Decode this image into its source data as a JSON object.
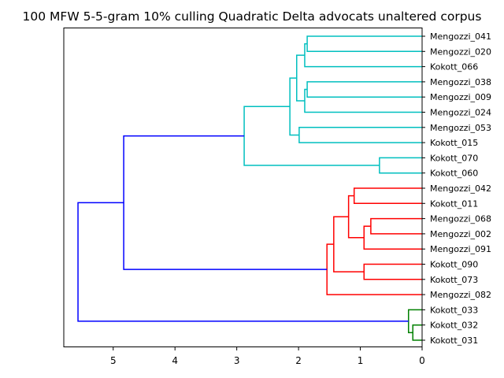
{
  "chart_data": {
    "type": "dendrogram",
    "title": "100 MFW 5-5-gram 10% culling Quadratic Delta advocats unaltered corpus",
    "xlim": [
      5.8,
      0
    ],
    "xticks": [
      5,
      4,
      3,
      2,
      1,
      0
    ],
    "leaves": [
      "Mengozzi_041",
      "Mengozzi_020",
      "Kokott_066",
      "Mengozzi_038",
      "Mengozzi_009",
      "Mengozzi_024",
      "Mengozzi_053",
      "Kokott_015",
      "Kokott_070",
      "Kokott_060",
      "Mengozzi_042",
      "Kokott_011",
      "Mengozzi_068",
      "Mengozzi_002",
      "Mengozzi_091",
      "Kokott_090",
      "Kokott_073",
      "Mengozzi_082",
      "Kokott_033",
      "Kokott_032",
      "Kokott_031"
    ],
    "colors": {
      "cyan": "#00bfbf",
      "red": "#ff0000",
      "green": "#008000",
      "blue": "#0000ff"
    },
    "links": [
      {
        "a": 0,
        "b": 1,
        "h": 1.86,
        "color": "cyan"
      },
      {
        "a": "L0",
        "b": 2,
        "h": 1.9,
        "color": "cyan"
      },
      {
        "a": 3,
        "b": 4,
        "h": 1.86,
        "color": "cyan"
      },
      {
        "a": "L2",
        "b": 5,
        "h": 1.9,
        "color": "cyan"
      },
      {
        "a": "L1",
        "b": "L3",
        "h": 2.03,
        "color": "cyan"
      },
      {
        "a": 6,
        "b": 7,
        "h": 1.99,
        "color": "cyan"
      },
      {
        "a": "L4",
        "b": "L5",
        "h": 2.14,
        "color": "cyan"
      },
      {
        "a": 8,
        "b": 9,
        "h": 0.69,
        "color": "cyan"
      },
      {
        "a": "L6",
        "b": "L7",
        "h": 2.88,
        "color": "cyan"
      },
      {
        "a": 10,
        "b": 11,
        "h": 1.1,
        "color": "red"
      },
      {
        "a": 12,
        "b": 13,
        "h": 0.83,
        "color": "red"
      },
      {
        "a": "L10",
        "b": 14,
        "h": 0.94,
        "color": "red"
      },
      {
        "a": "L9",
        "b": "L11",
        "h": 1.19,
        "color": "red"
      },
      {
        "a": 15,
        "b": 16,
        "h": 0.94,
        "color": "red"
      },
      {
        "a": "L12",
        "b": "L13",
        "h": 1.43,
        "color": "red"
      },
      {
        "a": "L14",
        "b": 17,
        "h": 1.54,
        "color": "red"
      },
      {
        "a": "L8",
        "b": "L15",
        "h": 4.83,
        "color": "blue"
      },
      {
        "a": 19,
        "b": 20,
        "h": 0.15,
        "color": "green"
      },
      {
        "a": 18,
        "b": "L17",
        "h": 0.22,
        "color": "green"
      },
      {
        "a": "L16",
        "b": "L18",
        "h": 5.57,
        "color": "blue"
      }
    ]
  }
}
